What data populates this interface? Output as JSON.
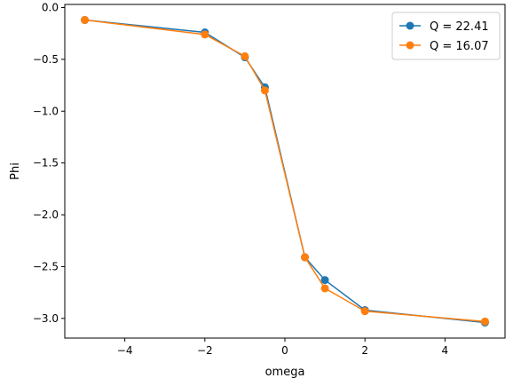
{
  "chart_data": {
    "type": "line",
    "xlabel": "omega",
    "ylabel": "Phi",
    "xlim": [
      -5.5,
      5.5
    ],
    "ylim": [
      -3.19,
      0.03
    ],
    "xticks": [
      -4,
      -2,
      0,
      2,
      4
    ],
    "xtick_labels": [
      "−4",
      "−2",
      "0",
      "2",
      "4"
    ],
    "yticks": [
      0.0,
      -0.5,
      -1.0,
      -1.5,
      -2.0,
      -2.5,
      -3.0
    ],
    "ytick_labels": [
      "0.0",
      "−0.5",
      "−1.0",
      "−1.5",
      "−2.0",
      "−2.5",
      "−3.0"
    ],
    "grid": false,
    "legend_position": "top-right",
    "markers": "circle",
    "series": [
      {
        "name": "Q = 22.41",
        "color": "#1f77b4",
        "x": [
          -5,
          -2,
          -1,
          -0.5,
          0.5,
          1,
          2,
          5
        ],
        "y": [
          -0.12,
          -0.24,
          -0.48,
          -0.77,
          -2.41,
          -2.63,
          -2.92,
          -3.04
        ]
      },
      {
        "name": "Q = 16.07",
        "color": "#ff7f0e",
        "x": [
          -5,
          -2,
          -1,
          -0.5,
          0.5,
          1,
          2,
          5
        ],
        "y": [
          -0.12,
          -0.26,
          -0.47,
          -0.8,
          -2.41,
          -2.71,
          -2.93,
          -3.03
        ]
      }
    ]
  }
}
